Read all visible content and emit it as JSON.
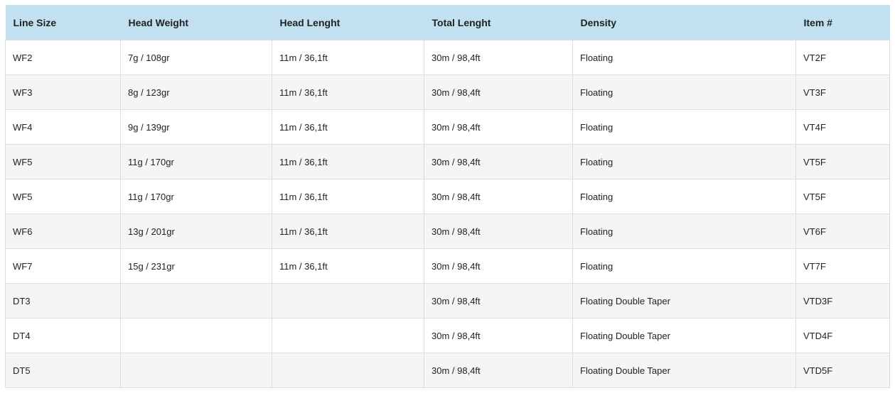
{
  "table": {
    "headers": [
      "Line Size",
      "Head Weight",
      "Head Lenght",
      "Total Lenght",
      "Density",
      "Item #"
    ],
    "rows": [
      [
        "WF2",
        "7g / 108gr",
        "11m / 36,1ft",
        "30m / 98,4ft",
        "Floating",
        "VT2F"
      ],
      [
        "WF3",
        "8g / 123gr",
        "11m / 36,1ft",
        "30m / 98,4ft",
        "Floating",
        "VT3F"
      ],
      [
        "WF4",
        "9g / 139gr",
        "11m / 36,1ft",
        "30m / 98,4ft",
        "Floating",
        "VT4F"
      ],
      [
        "WF5",
        "11g / 170gr",
        "11m / 36,1ft",
        "30m / 98,4ft",
        "Floating",
        "VT5F"
      ],
      [
        "WF5",
        "11g / 170gr",
        "11m / 36,1ft",
        "30m / 98,4ft",
        "Floating",
        "VT5F"
      ],
      [
        "WF6",
        "13g / 201gr",
        "11m / 36,1ft",
        "30m / 98,4ft",
        "Floating",
        "VT6F"
      ],
      [
        "WF7",
        "15g / 231gr",
        "11m / 36,1ft",
        "30m / 98,4ft",
        "Floating",
        "VT7F"
      ],
      [
        "DT3",
        "",
        "",
        "30m / 98,4ft",
        "Floating Double Taper",
        "VTD3F"
      ],
      [
        "DT4",
        "",
        "",
        "30m / 98,4ft",
        "Floating Double Taper",
        "VTD4F"
      ],
      [
        "DT5",
        "",
        "",
        "30m / 98,4ft",
        "Floating Double Taper",
        "VTD5F"
      ]
    ]
  },
  "colors": {
    "header_bg": "#c1e0f0",
    "row_alt": "#f5f5f5"
  }
}
